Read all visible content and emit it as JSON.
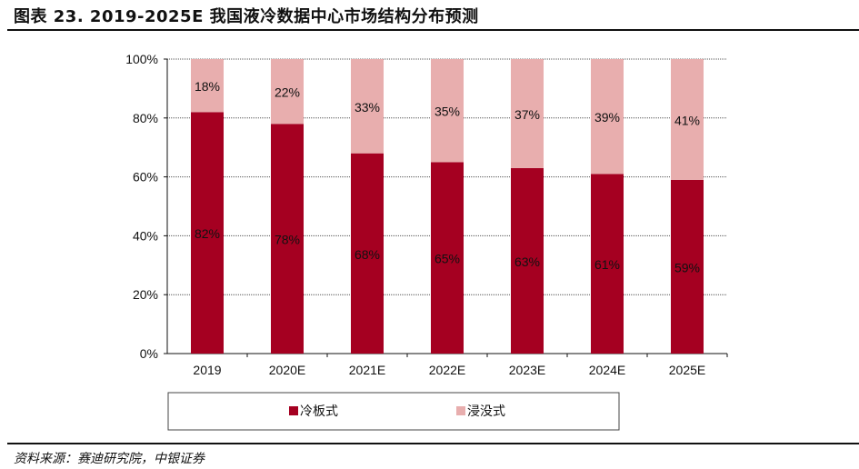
{
  "title": "图表 23. 2019-2025E 我国液冷数据中心市场结构分布预测",
  "source": "资料来源：赛迪研究院，中银证券",
  "chart_data": {
    "type": "bar",
    "stacked": true,
    "percent": true,
    "categories": [
      "2019",
      "2020E",
      "2021E",
      "2022E",
      "2023E",
      "2024E",
      "2025E"
    ],
    "series": [
      {
        "name": "冷板式",
        "color": "#A50021",
        "values": [
          82,
          78,
          68,
          65,
          63,
          61,
          59
        ]
      },
      {
        "name": "浸没式",
        "color": "#E8AEAE",
        "values": [
          18,
          22,
          33,
          35,
          37,
          39,
          41
        ]
      }
    ],
    "ylim": [
      0,
      100
    ],
    "yticks": [
      "0%",
      "20%",
      "40%",
      "60%",
      "80%",
      "100%"
    ],
    "grid": true,
    "legend": "bottom"
  }
}
